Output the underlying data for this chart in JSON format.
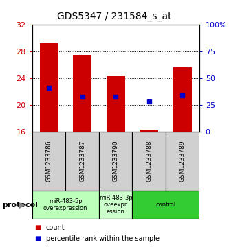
{
  "title": "GDS5347 / 231584_s_at",
  "samples": [
    "GSM1233786",
    "GSM1233787",
    "GSM1233790",
    "GSM1233788",
    "GSM1233789"
  ],
  "bar_bottoms": [
    16,
    16,
    16,
    16,
    16
  ],
  "bar_tops": [
    29.3,
    27.5,
    24.3,
    16.3,
    25.7
  ],
  "percentile_values": [
    22.6,
    21.3,
    21.3,
    20.5,
    21.5
  ],
  "ylim": [
    16,
    32
  ],
  "yticks": [
    16,
    20,
    24,
    28,
    32
  ],
  "right_yticks": [
    0,
    25,
    50,
    75,
    100
  ],
  "right_ytick_labels": [
    "0",
    "25",
    "50",
    "75",
    "100%"
  ],
  "bar_color": "#cc0000",
  "percentile_color": "#0000cc",
  "group_defs": [
    {
      "start": 0,
      "end": 2,
      "label": "miR-483-5p\noverexpression",
      "color": "#bbffbb"
    },
    {
      "start": 2,
      "end": 3,
      "label": "miR-483-3p\noveexpr\nession",
      "color": "#ccffcc"
    },
    {
      "start": 3,
      "end": 5,
      "label": "control",
      "color": "#33cc33"
    }
  ],
  "protocol_label": "protocol",
  "legend_count_label": "count",
  "legend_percentile_label": "percentile rank within the sample",
  "axis_left_color": "#cc0000",
  "axis_right_color": "#0000cc",
  "sample_bg_color": "#d0d0d0"
}
